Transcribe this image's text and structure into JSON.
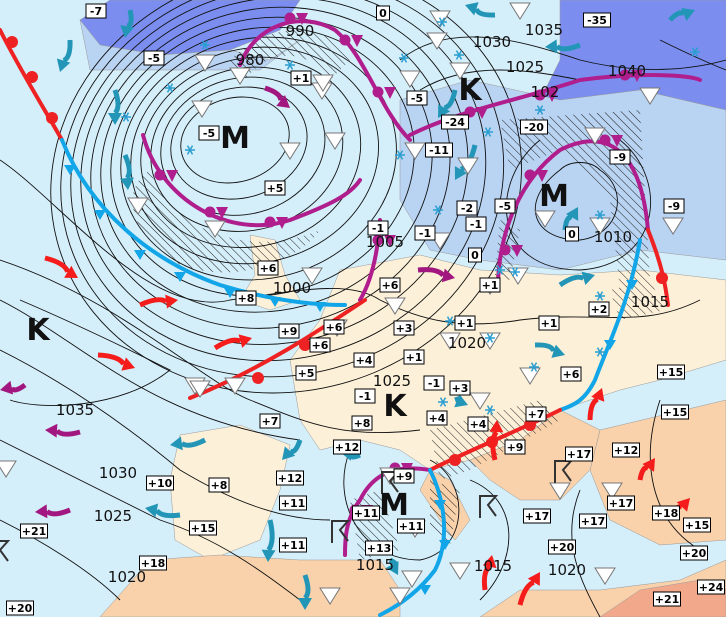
{
  "colors": {
    "sea": "#d4eefa",
    "land": "#fdf0d8",
    "warm_land": "#f9d2ab",
    "hot_land": "#f2a98b",
    "cold_area": "#7b8ef0",
    "cool_area": "#b9d3f2",
    "warm_front": "#ee2222",
    "cold_front": "#12a6e8",
    "occluded_front": "#b01d8c",
    "warm_arrow": "#f51c1c",
    "cold_arrow": "#2396b8",
    "mild_arrow": "#a2177f"
  },
  "pressure_centers": [
    {
      "letter": "K",
      "type": "high"
    },
    {
      "letter": "K",
      "type": "high"
    },
    {
      "letter": "K",
      "type": "high"
    },
    {
      "letter": "M",
      "type": "low"
    },
    {
      "letter": "M",
      "type": "low"
    },
    {
      "letter": "M",
      "type": "low"
    }
  ],
  "isobar_labels": [
    "990",
    "980",
    "1030",
    "1035",
    "1025",
    "102",
    "1040",
    "1005",
    "1000",
    "1010",
    "1015",
    "1020",
    "1025",
    "1035",
    "1030",
    "1025",
    "1020",
    "1015",
    "1015",
    "1020"
  ],
  "temperatures": [
    "-7",
    "0",
    "-35",
    "-5",
    "+1",
    "-5",
    "-24",
    "-20",
    "-5",
    "-11",
    "-9",
    "+5",
    "-9",
    "-2",
    "-5",
    "-1",
    "-1",
    "-1",
    "0",
    "0",
    "+6",
    "+6",
    "+1",
    "+8",
    "+2",
    "+9",
    "+6",
    "+3",
    "+1",
    "+1",
    "+6",
    "+4",
    "+1",
    "+5",
    "-1",
    "+3",
    "-1",
    "+6",
    "+15",
    "+15",
    "+7",
    "+8",
    "+4",
    "+4",
    "+7",
    "+12",
    "+12",
    "+9",
    "+9",
    "+17",
    "+12",
    "+10",
    "+8",
    "+11",
    "+11",
    "+11",
    "+17",
    "+17",
    "+15",
    "+17",
    "+18",
    "+15",
    "+21",
    "+11",
    "+13",
    "+20",
    "+20",
    "+18",
    "+24",
    "+21",
    "+20"
  ],
  "symbols": {
    "snow": "snow-icon",
    "shower": "shower-triangle-icon",
    "thunderstorm": "thunderstorm-icon"
  }
}
